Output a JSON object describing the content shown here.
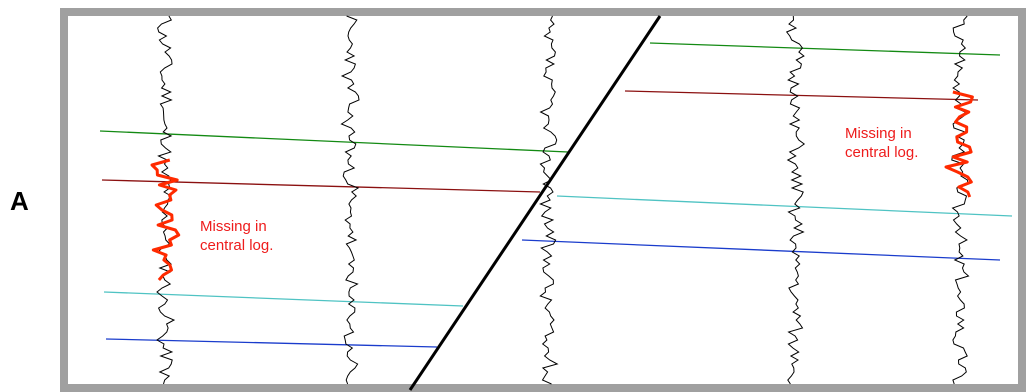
{
  "panel": {
    "label": "A"
  },
  "annotations": [
    {
      "id": "left",
      "lines": [
        "Missing in",
        "central log."
      ]
    },
    {
      "id": "right",
      "lines": [
        "Missing in",
        "central log."
      ]
    }
  ],
  "colors": {
    "frame": "#a0a0a0",
    "log_trace": "#000000",
    "missing_segment": "#ff2a00",
    "annotation_text": "#ee1c1c",
    "fault": "#000000",
    "horizon_green": "#138a13",
    "horizon_darkred": "#8b1010",
    "horizon_cyan": "#4fc3c3",
    "horizon_blue": "#1a3ccc"
  },
  "horizons": [
    {
      "name": "green"
    },
    {
      "name": "darkred"
    },
    {
      "name": "cyan"
    },
    {
      "name": "blue"
    }
  ],
  "logs": [
    {
      "id": "log-1",
      "missing_section": true
    },
    {
      "id": "log-2",
      "missing_section": false
    },
    {
      "id": "log-3",
      "missing_section": false
    },
    {
      "id": "log-4",
      "missing_section": false
    },
    {
      "id": "log-5",
      "missing_section": true
    }
  ]
}
